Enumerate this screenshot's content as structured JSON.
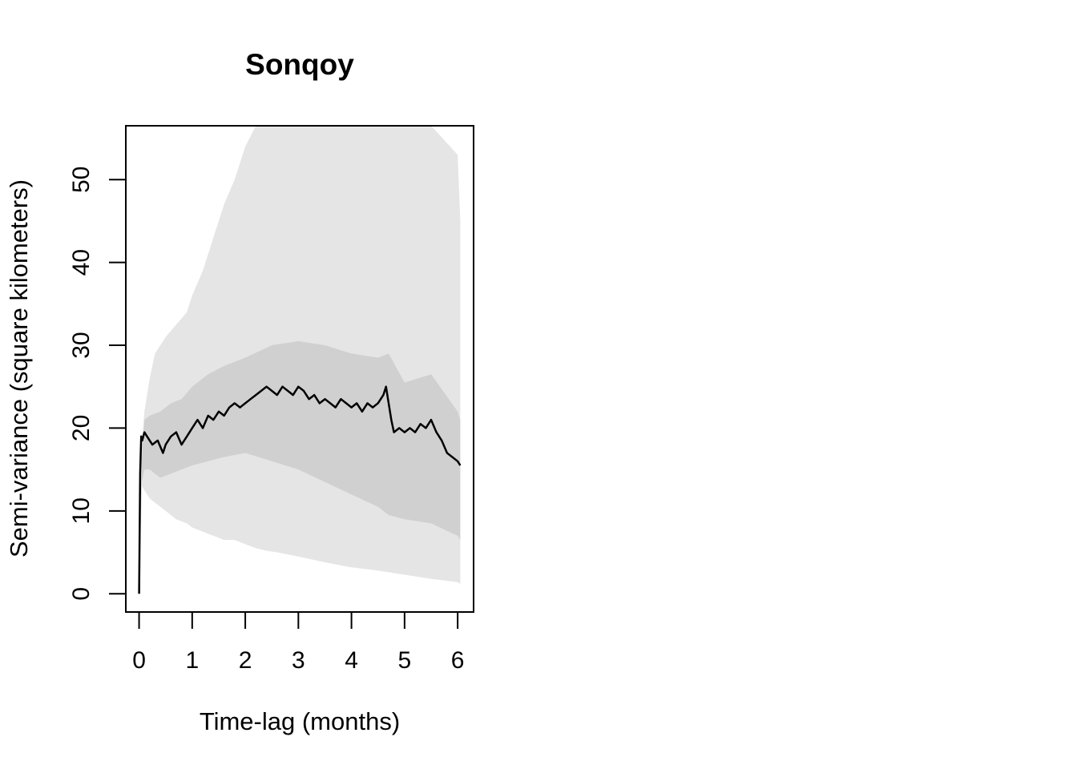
{
  "chart_data": {
    "type": "line",
    "title": "Sonqoy",
    "xlabel": "Time-lag (months)",
    "ylabel": "Semi-variance (square kilometers)",
    "xlim": [
      -0.25,
      6.3
    ],
    "ylim": [
      -2.2,
      56.5
    ],
    "xticks": [
      0,
      1,
      2,
      3,
      4,
      5,
      6
    ],
    "yticks": [
      0,
      10,
      20,
      30,
      40,
      50
    ],
    "grid": false,
    "legend": "none",
    "colors": {
      "outer_band": "#e5e5e5",
      "inner_band": "#d0d0d0",
      "line": "#000000"
    },
    "series": [
      {
        "role": "semi-variance",
        "x": [
          0,
          0.02,
          0.04,
          0.06,
          0.1,
          0.15,
          0.25,
          0.35,
          0.45,
          0.5,
          0.6,
          0.7,
          0.8,
          0.9,
          1.0,
          1.1,
          1.2,
          1.3,
          1.4,
          1.5,
          1.6,
          1.7,
          1.8,
          1.9,
          2.0,
          2.1,
          2.2,
          2.3,
          2.4,
          2.5,
          2.6,
          2.7,
          2.8,
          2.9,
          3.0,
          3.1,
          3.2,
          3.3,
          3.4,
          3.5,
          3.6,
          3.7,
          3.8,
          3.9,
          4.0,
          4.1,
          4.2,
          4.3,
          4.4,
          4.5,
          4.6,
          4.65,
          4.7,
          4.75,
          4.8,
          4.9,
          5.0,
          5.1,
          5.2,
          5.3,
          5.4,
          5.5,
          5.6,
          5.7,
          5.8,
          5.9,
          6.0,
          6.05
        ],
        "y": [
          0,
          14.5,
          19,
          18.5,
          19.5,
          19,
          18,
          18.5,
          17,
          18,
          19,
          19.5,
          18,
          19,
          20,
          21,
          20,
          21.5,
          21,
          22,
          21.5,
          22.5,
          23,
          22.5,
          23,
          23.5,
          24,
          24.5,
          25,
          24.5,
          24,
          25,
          24.5,
          24,
          25,
          24.5,
          23.5,
          24,
          23,
          23.5,
          23,
          22.5,
          23.5,
          23,
          22.5,
          23,
          22,
          23,
          22.5,
          23,
          24,
          25,
          23,
          21,
          19.5,
          20,
          19.5,
          20,
          19.5,
          20.5,
          20,
          21,
          19.5,
          18.5,
          17,
          16.5,
          16,
          15.5
        ]
      },
      {
        "role": "confidence-inner",
        "x": [
          0,
          0.05,
          0.1,
          0.2,
          0.4,
          0.6,
          0.8,
          1.0,
          1.3,
          1.6,
          2.0,
          2.5,
          3.0,
          3.5,
          4.0,
          4.5,
          4.7,
          5.0,
          5.5,
          6.0,
          6.05
        ],
        "upper": [
          0,
          16,
          21,
          21.5,
          22,
          23,
          23.5,
          25,
          26.5,
          27.5,
          28.5,
          30,
          30.5,
          30,
          29,
          28.5,
          29,
          25.5,
          26.5,
          22,
          21
        ],
        "lower": [
          0,
          13.5,
          15,
          15,
          14,
          14.5,
          15,
          15.5,
          16,
          16.5,
          17,
          16,
          15,
          13.5,
          12,
          10.5,
          9.5,
          9,
          8.5,
          7,
          6.5
        ]
      },
      {
        "role": "confidence-outer",
        "x": [
          0,
          0.05,
          0.1,
          0.2,
          0.3,
          0.5,
          0.7,
          0.9,
          1.0,
          1.2,
          1.4,
          1.6,
          1.8,
          2.0,
          2.2,
          2.4,
          2.6,
          3.0,
          3.5,
          4.0,
          4.5,
          5.0,
          5.5,
          6.0,
          6.05
        ],
        "upper": [
          0,
          18,
          22,
          26,
          29,
          31,
          32.5,
          34,
          36,
          39,
          43,
          47,
          50,
          54,
          56.5,
          56.5,
          56.5,
          56.5,
          56.5,
          56.5,
          56.5,
          56.5,
          56.5,
          53,
          45
        ],
        "lower": [
          0,
          13,
          12.5,
          11.5,
          11,
          10,
          9,
          8.5,
          8,
          7.5,
          7,
          6.5,
          6.5,
          6,
          5.5,
          5.2,
          5,
          4.5,
          3.8,
          3.2,
          2.8,
          2.3,
          1.8,
          1.4,
          1.2
        ]
      }
    ]
  }
}
